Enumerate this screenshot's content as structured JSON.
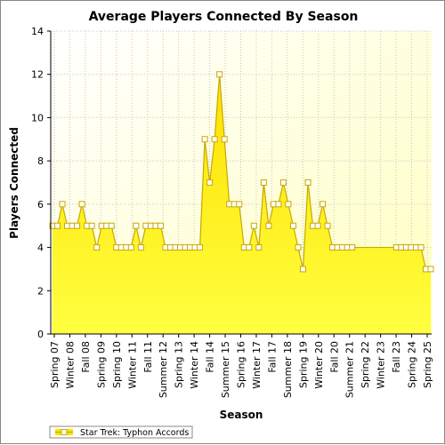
{
  "chart_data": {
    "type": "area",
    "title": "Average Players Connected By Season",
    "xlabel": "Season",
    "ylabel": "Players Connected",
    "ylim": [
      0,
      14
    ],
    "yticks": [
      0,
      2,
      4,
      6,
      8,
      10,
      12,
      14
    ],
    "grid": true,
    "legend_position": "bottom-left",
    "colors": {
      "fill_top": "#ffe000",
      "fill_bottom": "#ffff40",
      "line": "#c8a800",
      "marker_fill": "#ffffff",
      "marker_stroke": "#c8a800",
      "plot_bg_light": "#ffffff",
      "plot_bg_dark": "#ffffc0",
      "grid": "#c8c8c8"
    },
    "x_tick_labels": [
      "Spring 07",
      "Winter 08",
      "Fall 08",
      "Spring 09",
      "Spring 10",
      "Winter 11",
      "Fall 11",
      "Summer 12",
      "Spring 13",
      "Winter 14",
      "Fall 14",
      "Summer 15",
      "Spring 16",
      "Winter 17",
      "Fall 17",
      "Summer 18",
      "Spring 19",
      "Winter 20",
      "Fall 20",
      "Summer 21",
      "Spring 22",
      "Winter 23",
      "Fall 23",
      "Spring 24",
      "Spring 25"
    ],
    "series": [
      {
        "name": "Star Trek: Typhon Accords",
        "values": [
          5,
          5,
          6,
          5,
          5,
          5,
          6,
          5,
          5,
          4,
          5,
          5,
          5,
          4,
          4,
          4,
          4,
          5,
          4,
          5,
          5,
          5,
          5,
          4,
          4,
          4,
          4,
          4,
          4,
          4,
          4,
          9,
          7,
          9,
          12,
          9,
          6,
          6,
          6,
          4,
          4,
          5,
          4,
          7,
          5,
          6,
          6,
          7,
          6,
          5,
          4,
          3,
          7,
          5,
          5,
          6,
          5,
          4,
          4,
          4,
          4,
          4,
          4,
          4,
          4,
          4,
          4,
          4,
          4,
          4,
          4,
          4,
          4,
          4,
          4,
          4,
          3,
          3
        ],
        "markers": [
          true,
          true,
          true,
          true,
          true,
          true,
          true,
          true,
          true,
          true,
          true,
          true,
          true,
          true,
          true,
          true,
          true,
          true,
          true,
          true,
          true,
          true,
          true,
          true,
          true,
          true,
          true,
          true,
          true,
          true,
          true,
          true,
          true,
          true,
          true,
          true,
          true,
          true,
          true,
          true,
          true,
          true,
          true,
          true,
          true,
          true,
          true,
          true,
          true,
          true,
          true,
          true,
          true,
          true,
          true,
          true,
          true,
          true,
          true,
          true,
          true,
          true,
          false,
          false,
          false,
          false,
          false,
          false,
          false,
          false,
          true,
          true,
          true,
          true,
          true,
          true,
          true,
          true
        ]
      }
    ]
  }
}
